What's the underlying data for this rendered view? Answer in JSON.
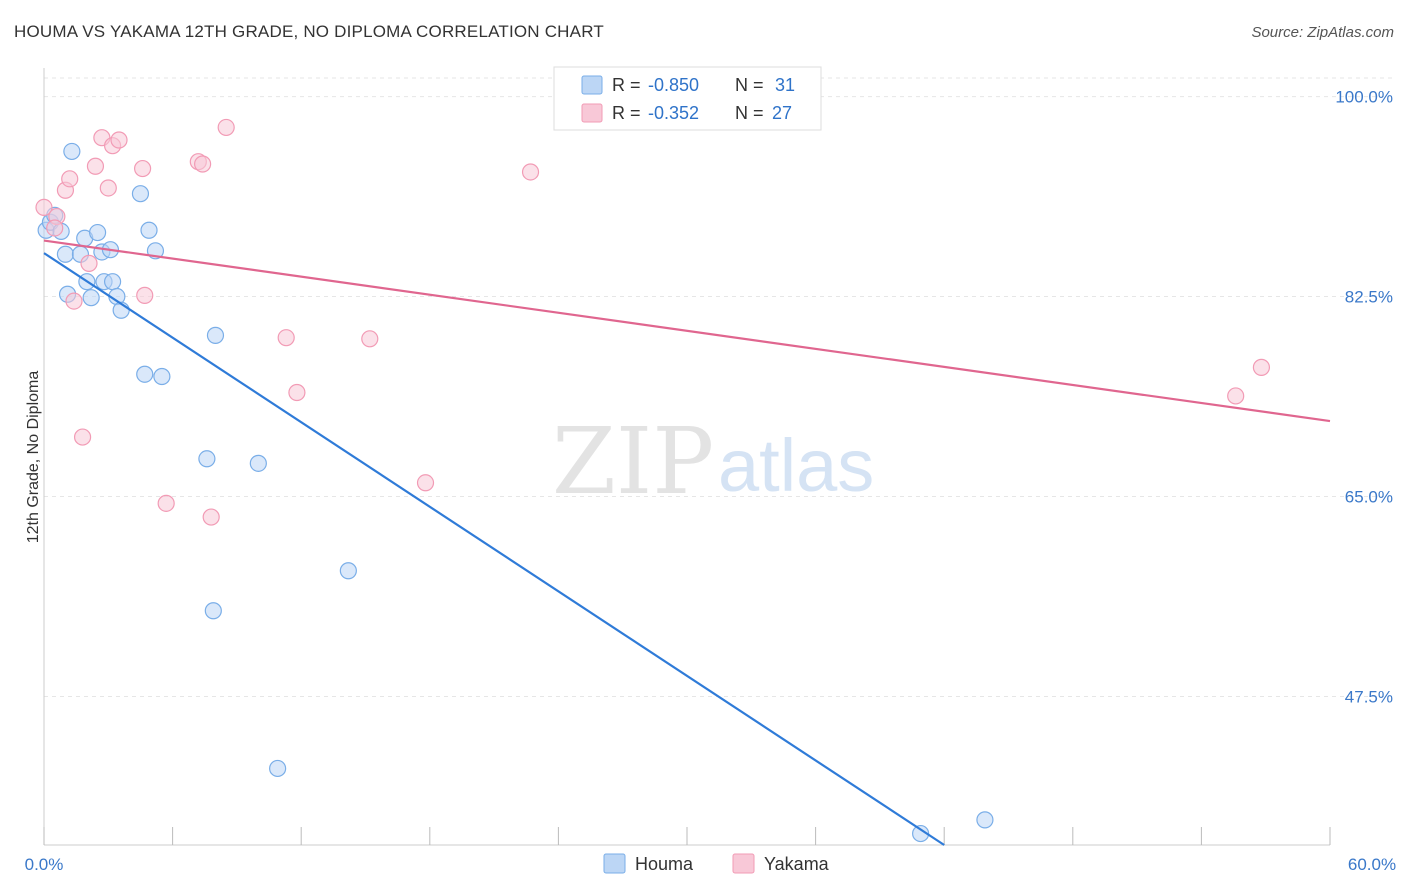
{
  "chart_data": {
    "type": "scatter",
    "title": "HOUMA VS YAKAMA 12TH GRADE, NO DIPLOMA CORRELATION CHART",
    "source": "Source: ZipAtlas.com",
    "xlabel": "",
    "ylabel": "12th Grade, No Diploma",
    "xlim": [
      0,
      60
    ],
    "ylim": [
      34.5,
      102.5
    ],
    "x_tick_labels": [
      "0.0%",
      "60.0%"
    ],
    "y_ticks": [
      {
        "value": 100.0,
        "label": "100.0%"
      },
      {
        "value": 82.5,
        "label": "82.5%"
      },
      {
        "value": 65.0,
        "label": "65.0%"
      },
      {
        "value": 47.5,
        "label": "47.5%"
      }
    ],
    "watermark": {
      "zip": "ZIP",
      "atlas": "atlas"
    },
    "stats": [
      {
        "r_label": "R =",
        "r": "-0.850",
        "n_label": "N =",
        "n": "31"
      },
      {
        "r_label": "R =",
        "r": "-0.352",
        "n_label": "N =",
        "n": "27"
      }
    ],
    "series": [
      {
        "name": "Houma",
        "color": "#7aaee8",
        "fill": "#bcd6f5",
        "line_color": "#2f7bd8",
        "trend": {
          "x": [
            0.0,
            42.0
          ],
          "y": [
            86.3,
            34.5
          ]
        },
        "points": [
          [
            0.1,
            88.3
          ],
          [
            0.3,
            89.0
          ],
          [
            0.5,
            89.6
          ],
          [
            0.8,
            88.2
          ],
          [
            1.0,
            86.2
          ],
          [
            1.3,
            95.2
          ],
          [
            1.1,
            82.7
          ],
          [
            1.7,
            86.2
          ],
          [
            1.9,
            87.6
          ],
          [
            2.0,
            83.8
          ],
          [
            2.2,
            82.4
          ],
          [
            2.5,
            88.1
          ],
          [
            2.7,
            86.4
          ],
          [
            2.8,
            83.8
          ],
          [
            3.1,
            86.6
          ],
          [
            3.2,
            83.8
          ],
          [
            3.4,
            82.5
          ],
          [
            3.6,
            81.3
          ],
          [
            4.5,
            91.5
          ],
          [
            4.7,
            75.7
          ],
          [
            5.2,
            86.5
          ],
          [
            5.5,
            75.5
          ],
          [
            7.6,
            68.3
          ],
          [
            8.0,
            79.1
          ],
          [
            7.9,
            55.0
          ],
          [
            10.0,
            67.9
          ],
          [
            10.9,
            41.2
          ],
          [
            14.2,
            58.5
          ],
          [
            40.9,
            35.5
          ],
          [
            43.9,
            36.7
          ],
          [
            4.9,
            88.3
          ]
        ]
      },
      {
        "name": "Yakama",
        "color": "#f29bb5",
        "fill": "#f8c8d7",
        "line_color": "#e0668f",
        "trend": {
          "x": [
            0.0,
            60.0
          ],
          "y": [
            87.4,
            71.6
          ]
        },
        "points": [
          [
            0.0,
            90.3
          ],
          [
            0.6,
            89.5
          ],
          [
            1.0,
            91.8
          ],
          [
            1.2,
            92.8
          ],
          [
            1.4,
            82.1
          ],
          [
            1.8,
            70.2
          ],
          [
            2.1,
            85.4
          ],
          [
            2.4,
            93.9
          ],
          [
            2.7,
            96.4
          ],
          [
            3.0,
            92.0
          ],
          [
            3.2,
            95.7
          ],
          [
            3.5,
            96.2
          ],
          [
            4.6,
            93.7
          ],
          [
            4.7,
            82.6
          ],
          [
            5.7,
            64.4
          ],
          [
            7.2,
            94.3
          ],
          [
            7.4,
            94.1
          ],
          [
            7.8,
            63.2
          ],
          [
            8.5,
            97.3
          ],
          [
            11.3,
            78.9
          ],
          [
            11.8,
            74.1
          ],
          [
            15.2,
            78.8
          ],
          [
            17.8,
            66.2
          ],
          [
            22.7,
            93.4
          ],
          [
            55.6,
            73.8
          ],
          [
            56.8,
            76.3
          ],
          [
            0.5,
            88.5
          ]
        ]
      }
    ]
  }
}
